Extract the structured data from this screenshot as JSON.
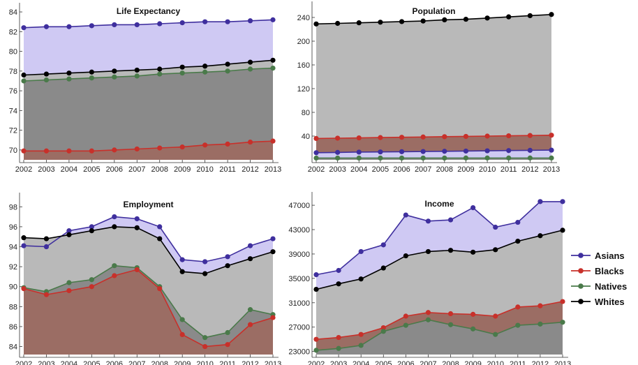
{
  "chart_data": [
    {
      "type": "area",
      "title": "Life Expectancy",
      "x": [
        2002,
        2003,
        2004,
        2005,
        2006,
        2007,
        2008,
        2009,
        2010,
        2011,
        2012,
        2013
      ],
      "xticks": [
        "2002",
        "2003",
        "2004",
        "2005",
        "2006",
        "2007",
        "2008",
        "2009",
        "2010",
        "2011",
        "2012",
        "2013"
      ],
      "ylim": [
        69,
        84.5
      ],
      "yticks": [
        "70",
        "72",
        "74",
        "76",
        "78",
        "80",
        "82",
        "84"
      ],
      "series": [
        {
          "name": "Asians",
          "color": "#3f2f9e",
          "values": [
            82.4,
            82.5,
            82.5,
            82.6,
            82.7,
            82.7,
            82.8,
            82.9,
            83.0,
            83.0,
            83.1,
            83.2
          ]
        },
        {
          "name": "Whites",
          "color": "#000000",
          "values": [
            77.6,
            77.7,
            77.8,
            77.9,
            78.0,
            78.1,
            78.2,
            78.4,
            78.5,
            78.7,
            78.9,
            79.1
          ]
        },
        {
          "name": "Natives",
          "color": "#4a7a4a",
          "values": [
            77.0,
            77.1,
            77.2,
            77.3,
            77.4,
            77.5,
            77.7,
            77.8,
            77.9,
            78.0,
            78.2,
            78.3
          ]
        },
        {
          "name": "Blacks",
          "color": "#c8302a",
          "values": [
            69.9,
            69.9,
            69.9,
            69.9,
            70.0,
            70.1,
            70.2,
            70.3,
            70.5,
            70.6,
            70.8,
            70.9
          ]
        }
      ]
    },
    {
      "type": "area",
      "title": "Population",
      "x": [
        2002,
        2003,
        2004,
        2005,
        2006,
        2007,
        2008,
        2009,
        2010,
        2011,
        2012,
        2013
      ],
      "xticks": [
        "2002",
        "2003",
        "2004",
        "2005",
        "2006",
        "2007",
        "2008",
        "2009",
        "2010",
        "2011",
        "2012",
        "2013"
      ],
      "ylim": [
        0,
        260
      ],
      "yticks": [
        "40",
        "80",
        "120",
        "160",
        "200",
        "240"
      ],
      "series": [
        {
          "name": "Whites",
          "color": "#000000",
          "values": [
            229,
            230,
            231,
            232,
            233,
            234,
            236,
            237,
            239,
            241,
            243,
            245
          ]
        },
        {
          "name": "Blacks",
          "color": "#c8302a",
          "values": [
            36,
            36.5,
            37,
            37.5,
            38,
            38.5,
            39,
            39.5,
            40,
            40.5,
            41,
            41.5
          ]
        },
        {
          "name": "Asians",
          "color": "#3f2f9e",
          "values": [
            12,
            12.5,
            13,
            13.3,
            13.7,
            14,
            14.4,
            14.8,
            15.2,
            15.6,
            16,
            16.3
          ]
        },
        {
          "name": "Natives",
          "color": "#4a7a4a",
          "values": [
            3,
            3,
            3,
            3,
            3,
            3,
            3,
            3.1,
            3.1,
            3.1,
            3.1,
            3.1
          ]
        }
      ]
    },
    {
      "type": "area",
      "title": "Employment",
      "x": [
        2002,
        2003,
        2004,
        2005,
        2006,
        2007,
        2008,
        2009,
        2010,
        2011,
        2012,
        2013
      ],
      "xticks": [
        "2002",
        "2003",
        "2004",
        "2005",
        "2006",
        "2007",
        "2008",
        "2009",
        "2010",
        "2011",
        "2012",
        "2013"
      ],
      "ylim": [
        83.2,
        99
      ],
      "yticks": [
        "84",
        "86",
        "88",
        "90",
        "92",
        "94",
        "96",
        "98"
      ],
      "series": [
        {
          "name": "Asians",
          "color": "#3f2f9e",
          "values": [
            94.1,
            94.0,
            95.6,
            96.0,
            97.0,
            96.8,
            96.0,
            92.7,
            92.5,
            93.0,
            94.1,
            94.8
          ]
        },
        {
          "name": "Whites",
          "color": "#000000",
          "values": [
            94.9,
            94.8,
            95.2,
            95.6,
            96.0,
            95.9,
            94.8,
            91.5,
            91.3,
            92.1,
            92.8,
            93.5
          ]
        },
        {
          "name": "Natives",
          "color": "#4a7a4a",
          "values": [
            89.9,
            89.5,
            90.4,
            90.7,
            92.1,
            91.9,
            90.0,
            86.7,
            84.9,
            85.4,
            87.7,
            87.2
          ]
        },
        {
          "name": "Blacks",
          "color": "#c8302a",
          "values": [
            89.8,
            89.2,
            89.6,
            90.0,
            91.1,
            91.7,
            89.8,
            85.2,
            84.0,
            84.2,
            86.2,
            86.9
          ]
        }
      ]
    },
    {
      "type": "area",
      "title": "Income",
      "x": [
        2002,
        2003,
        2004,
        2005,
        2006,
        2007,
        2008,
        2009,
        2010,
        2011,
        2012,
        2013
      ],
      "xticks": [
        "2002",
        "2003",
        "2004",
        "2005",
        "2006",
        "2007",
        "2008",
        "2009",
        "2010",
        "2011",
        "2012",
        "2013"
      ],
      "ylim": [
        22500,
        48500
      ],
      "yticks": [
        "23000",
        "27000",
        "31000",
        "35000",
        "39000",
        "43000",
        "47000"
      ],
      "series": [
        {
          "name": "Asians",
          "color": "#3f2f9e",
          "values": [
            35600,
            36300,
            39400,
            40500,
            45400,
            44400,
            44600,
            46600,
            43400,
            44200,
            47600,
            47600
          ]
        },
        {
          "name": "Whites",
          "color": "#000000",
          "values": [
            33200,
            34100,
            34900,
            36700,
            38700,
            39400,
            39600,
            39300,
            39700,
            41100,
            42000,
            42900
          ]
        },
        {
          "name": "Blacks",
          "color": "#c8302a",
          "values": [
            25000,
            25300,
            25800,
            26900,
            28800,
            29400,
            29200,
            29100,
            28800,
            30300,
            30500,
            31200
          ]
        },
        {
          "name": "Natives",
          "color": "#4a7a4a",
          "values": [
            23200,
            23500,
            24000,
            26300,
            27300,
            28200,
            27400,
            26700,
            25800,
            27300,
            27500,
            27800
          ]
        }
      ]
    }
  ],
  "legend": {
    "placement": "right",
    "items": [
      {
        "name": "Asians",
        "color": "#3f2f9e"
      },
      {
        "name": "Blacks",
        "color": "#c8302a"
      },
      {
        "name": "Natives",
        "color": "#4a7a4a"
      },
      {
        "name": "Whites",
        "color": "#000000"
      }
    ]
  },
  "fills": {
    "Asians": "#cfc9f3",
    "Blacks": "#9b6d64",
    "Natives": "#8a8a8a",
    "Whites": "#b9b9b9"
  }
}
